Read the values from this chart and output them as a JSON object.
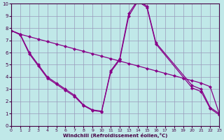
{
  "xlabel": "Windchill (Refroidissement éolien,°C)",
  "background_color": "#c0e8e8",
  "grid_color": "#9999bb",
  "line_color": "#880088",
  "xmin": 0,
  "xmax": 23,
  "ymin": 0,
  "ymax": 10,
  "line1_x": [
    0,
    1,
    2,
    3,
    4,
    5,
    6,
    7,
    8,
    9,
    10,
    11,
    12,
    13,
    14,
    15,
    16,
    20,
    21,
    22,
    23
  ],
  "line1_y": [
    7.8,
    7.5,
    6.0,
    5.0,
    4.0,
    3.5,
    3.0,
    2.5,
    1.7,
    1.3,
    1.2,
    4.5,
    5.5,
    9.2,
    10.3,
    9.8,
    6.8,
    3.3,
    3.0,
    1.5,
    1.0
  ],
  "line2_x": [
    0,
    1,
    2,
    3,
    4,
    5,
    6,
    7,
    8,
    9,
    10,
    11,
    12,
    13,
    14,
    15,
    16,
    20,
    21,
    22,
    23
  ],
  "line2_y": [
    7.8,
    7.45,
    5.9,
    4.9,
    3.9,
    3.4,
    2.9,
    2.4,
    1.65,
    1.25,
    1.15,
    4.4,
    5.4,
    9.0,
    10.2,
    9.7,
    6.7,
    3.1,
    2.8,
    1.4,
    0.9
  ],
  "line3_x": [
    0,
    1,
    2,
    3,
    4,
    5,
    6,
    7,
    8,
    9,
    10,
    11,
    12,
    13,
    14,
    15,
    16,
    17,
    18,
    19,
    20,
    21,
    22,
    23
  ],
  "line3_y": [
    7.8,
    7.5,
    7.3,
    7.1,
    6.9,
    6.7,
    6.5,
    6.3,
    6.1,
    5.9,
    5.7,
    5.5,
    5.3,
    5.1,
    4.9,
    4.7,
    4.5,
    4.3,
    4.1,
    3.9,
    3.7,
    3.5,
    3.2,
    1.0
  ]
}
